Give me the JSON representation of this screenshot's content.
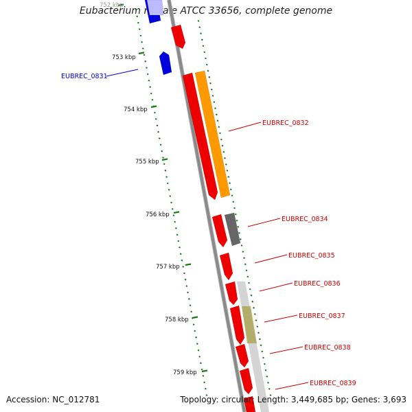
{
  "title": "Eubacterium rectale ATCC 33656, complete genome",
  "footer": {
    "accession": "Accession: NC_012781",
    "stats": "Topology: circular; Length: 3,449,685 bp; Genes: 3,693"
  },
  "colors": {
    "backbone": "#8a8a8a",
    "tick": "#1a7a1a",
    "forward_gene": "#ee0000",
    "reverse_gene": "#0000dd",
    "rna_gene": "#ff9900",
    "pseudo_gene": "#666666",
    "grey_band": "#cccccc",
    "olive_band": "#a8a04a"
  },
  "ruler": {
    "labels": [
      "752 kbp",
      "753 kbp",
      "754 kbp",
      "755 kbp",
      "756 kbp",
      "757 kbp",
      "758 kbp",
      "759 kbp"
    ]
  },
  "gene_labels": [
    {
      "id": "EUBREC_0831",
      "color": "#0000dd"
    },
    {
      "id": "EUBREC_0832",
      "color": "#cc0000"
    },
    {
      "id": "EUBREC_0834",
      "color": "#cc0000"
    },
    {
      "id": "EUBREC_0835",
      "color": "#cc0000"
    },
    {
      "id": "EUBREC_0836",
      "color": "#cc0000"
    },
    {
      "id": "EUBREC_0837",
      "color": "#cc0000"
    },
    {
      "id": "EUBREC_0838",
      "color": "#cc0000"
    },
    {
      "id": "EUBREC_0839",
      "color": "#cc0000"
    }
  ]
}
